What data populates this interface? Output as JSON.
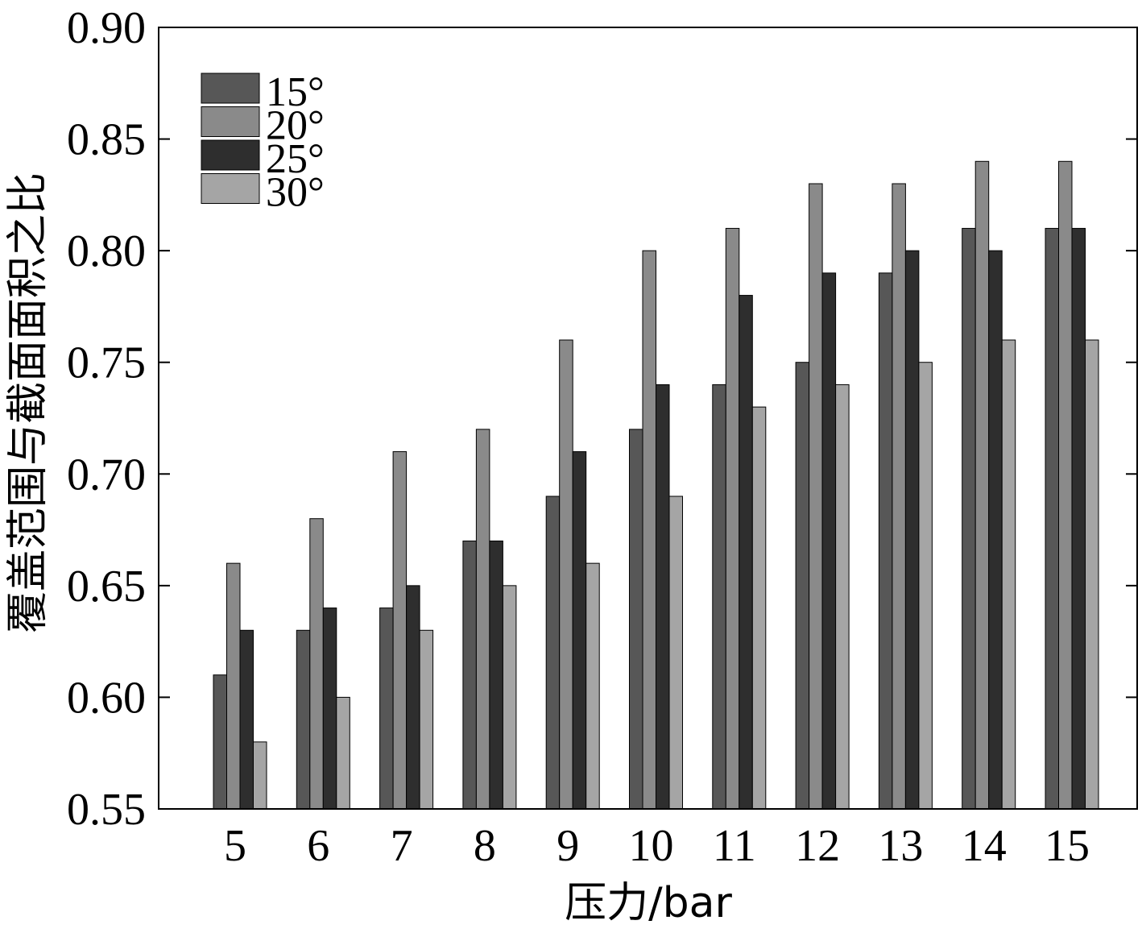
{
  "chart_data": {
    "type": "bar",
    "title": "",
    "xlabel": "压力/bar",
    "ylabel": "覆盖范围与截面面积之比",
    "categories": [
      "5",
      "6",
      "7",
      "8",
      "9",
      "10",
      "11",
      "12",
      "13",
      "14",
      "15"
    ],
    "ylim": [
      0.55,
      0.9
    ],
    "yticks": [
      "0.55",
      "0.60",
      "0.65",
      "0.70",
      "0.75",
      "0.80",
      "0.85",
      "0.90"
    ],
    "grid": false,
    "legend_position": "top-left",
    "series": [
      {
        "name": "15°",
        "color": "#575757",
        "values": [
          0.61,
          0.63,
          0.64,
          0.67,
          0.69,
          0.72,
          0.74,
          0.75,
          0.79,
          0.81,
          0.81
        ]
      },
      {
        "name": "20°",
        "color": "#8a8a8a",
        "values": [
          0.66,
          0.68,
          0.71,
          0.72,
          0.76,
          0.8,
          0.81,
          0.83,
          0.83,
          0.84,
          0.84
        ]
      },
      {
        "name": "25°",
        "color": "#2e2e2e",
        "values": [
          0.63,
          0.64,
          0.65,
          0.67,
          0.71,
          0.74,
          0.78,
          0.79,
          0.8,
          0.8,
          0.81
        ]
      },
      {
        "name": "30°",
        "color": "#a5a5a5",
        "values": [
          0.58,
          0.6,
          0.63,
          0.65,
          0.66,
          0.69,
          0.73,
          0.74,
          0.75,
          0.76,
          0.76
        ]
      }
    ]
  }
}
